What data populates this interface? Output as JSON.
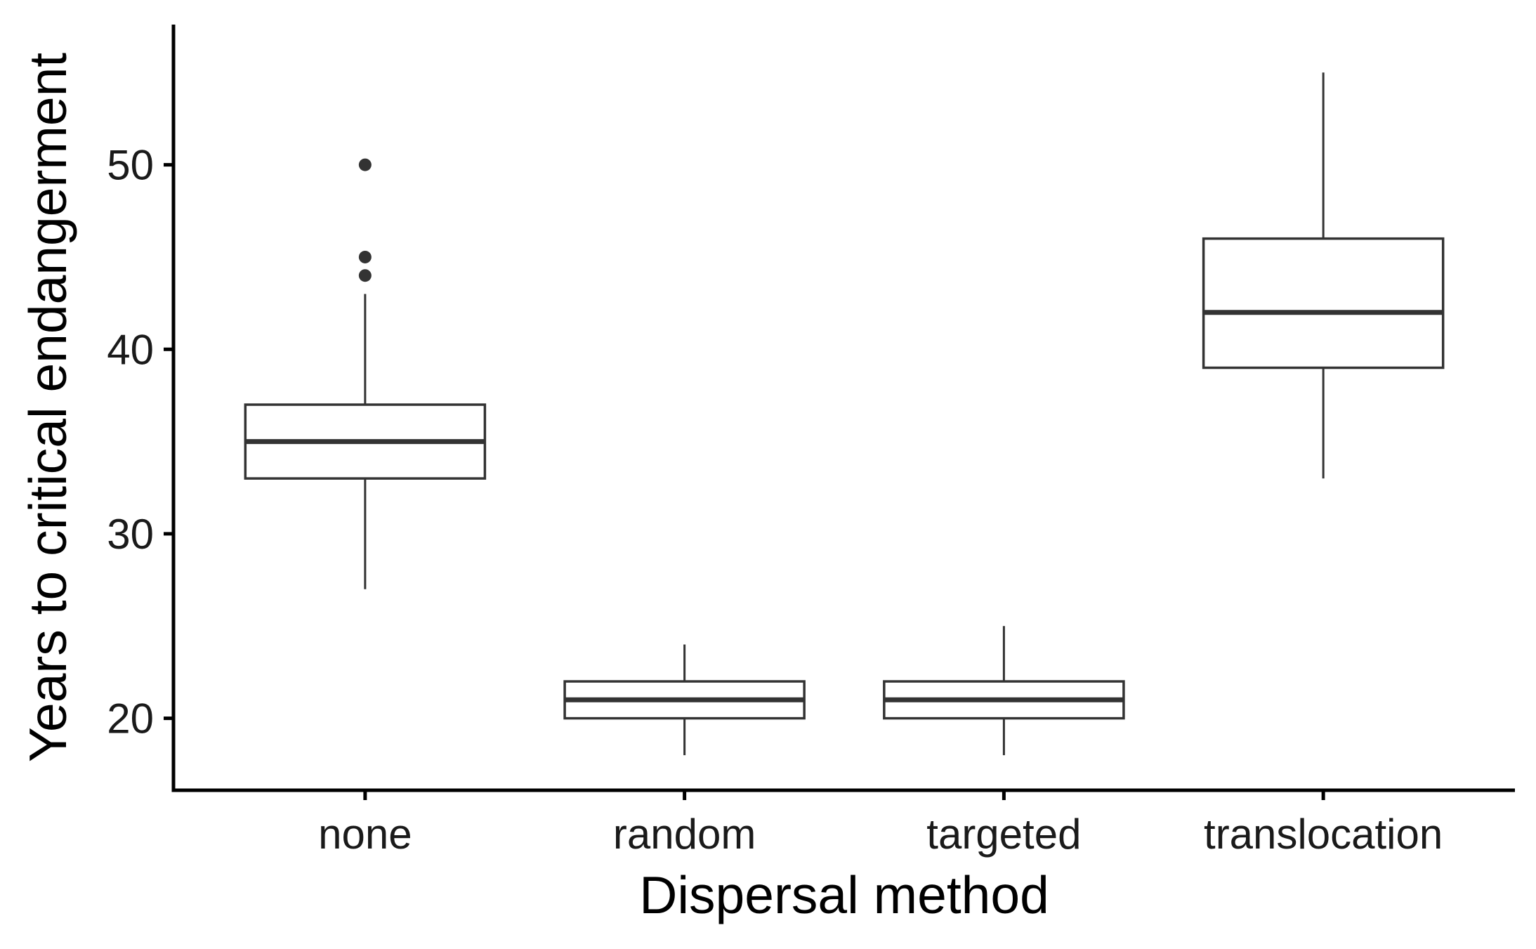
{
  "chart_data": {
    "type": "boxplot",
    "xlabel": "Dispersal method",
    "ylabel": "Years to critical endangerment",
    "categories": [
      "none",
      "random",
      "targeted",
      "translocation"
    ],
    "yticks": [
      20,
      30,
      40,
      50
    ],
    "ylim": [
      16.1,
      57.6
    ],
    "grid": false,
    "boxes": [
      {
        "category": "none",
        "whisker_low": 27,
        "q1": 33,
        "median": 35,
        "q3": 37,
        "whisker_high": 43,
        "outliers": [
          44,
          45,
          50
        ]
      },
      {
        "category": "random",
        "whisker_low": 18,
        "q1": 20,
        "median": 21,
        "q3": 22,
        "whisker_high": 24,
        "outliers": []
      },
      {
        "category": "targeted",
        "whisker_low": 18,
        "q1": 20,
        "median": 21,
        "q3": 22,
        "whisker_high": 25,
        "outliers": []
      },
      {
        "category": "translocation",
        "whisker_low": 33,
        "q1": 39,
        "median": 42,
        "q3": 46,
        "whisker_high": 55,
        "outliers": []
      }
    ],
    "colors": {
      "box_stroke": "#333333",
      "box_fill": "#ffffff",
      "axis": "#000000"
    }
  }
}
